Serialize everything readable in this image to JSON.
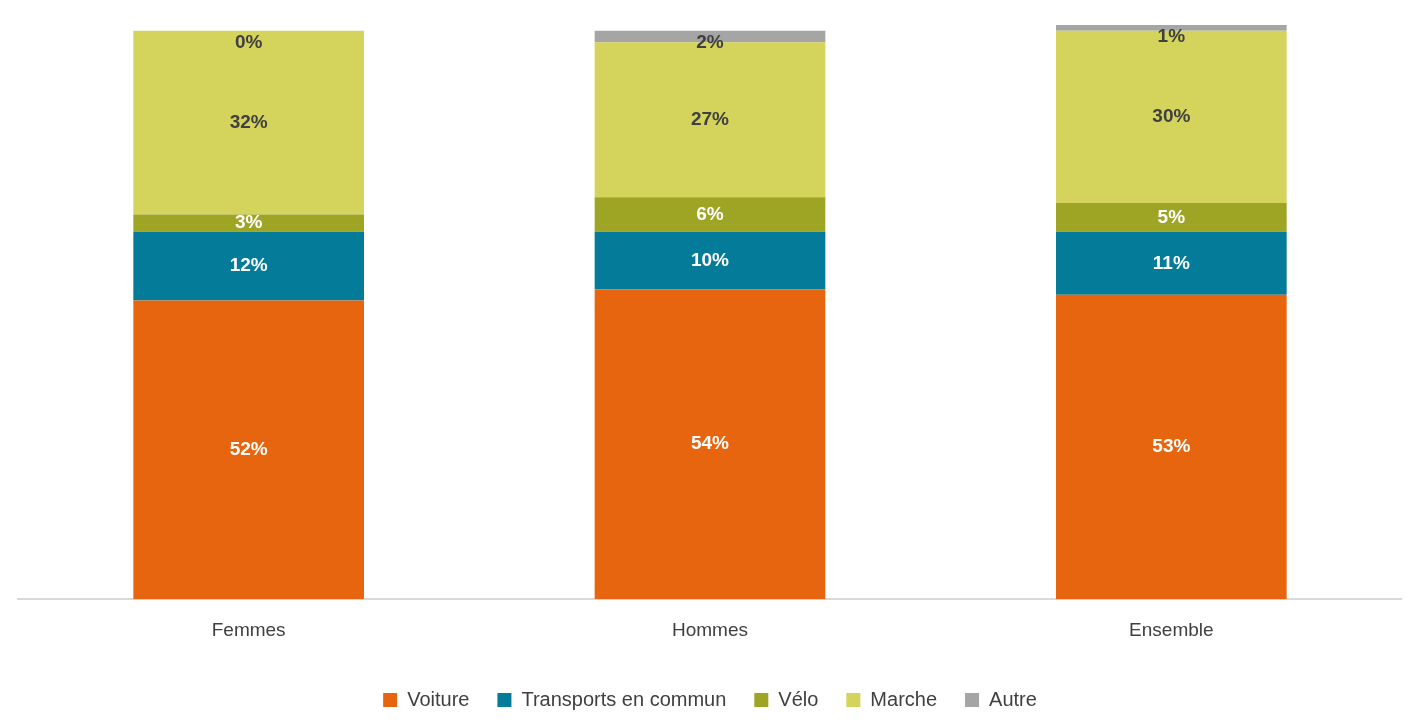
{
  "chart_data": {
    "type": "bar",
    "stacked": true,
    "categories": [
      "Femmes",
      "Hommes",
      "Ensemble"
    ],
    "series": [
      {
        "name": "Voiture",
        "color": "#e8650f",
        "values": [
          52,
          54,
          53
        ],
        "value_labels": [
          "52%",
          "54%",
          "53%"
        ]
      },
      {
        "name": "Transports en commun",
        "color": "#047b99",
        "values": [
          12,
          10,
          11
        ],
        "value_labels": [
          "12%",
          "10%",
          "11%"
        ]
      },
      {
        "name": "Vélo",
        "color": "#9ea424",
        "values": [
          3,
          6,
          5
        ],
        "value_labels": [
          "3%",
          "6%",
          "5%"
        ]
      },
      {
        "name": "Marche",
        "color": "#d4d35b",
        "values": [
          32,
          27,
          30
        ],
        "value_labels": [
          "32%",
          "27%",
          "30%"
        ]
      },
      {
        "name": "Autre",
        "color": "#a5a5a5",
        "values": [
          0,
          2,
          1
        ],
        "value_labels": [
          "0%",
          "2%",
          "1%"
        ]
      }
    ],
    "tick_labels": "x",
    "grid": false,
    "legend": "bottom"
  }
}
